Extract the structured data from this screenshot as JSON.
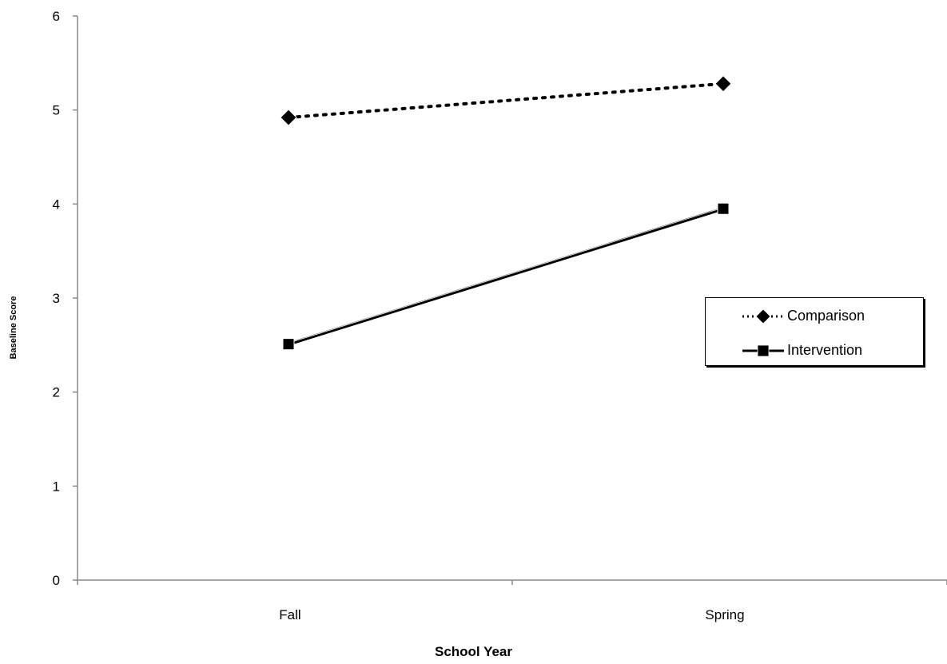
{
  "chart_data": {
    "type": "line",
    "title": "",
    "xlabel": "School Year",
    "ylabel": "Baseline Score",
    "categories": [
      "Fall",
      "Spring"
    ],
    "ylim": [
      0,
      6
    ],
    "yticks": [
      0,
      1,
      2,
      3,
      4,
      5,
      6
    ],
    "grid": false,
    "legend_position": "right",
    "series": [
      {
        "name": "Comparison",
        "values": [
          4.92,
          5.28
        ],
        "marker": "diamond",
        "line_style": "dotted",
        "color": "#000000"
      },
      {
        "name": "Intervention",
        "values": [
          2.51,
          3.95
        ],
        "marker": "square",
        "line_style": "solid",
        "color": "#000000"
      }
    ]
  }
}
